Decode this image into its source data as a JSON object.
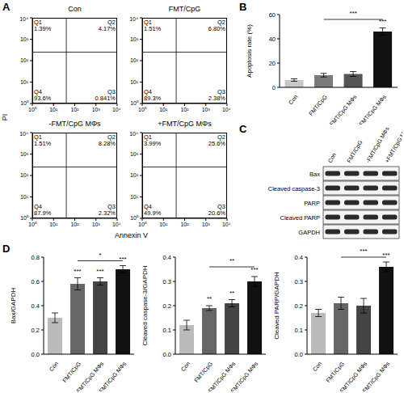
{
  "chart_data": [
    {
      "type": "scatter",
      "label": "A",
      "x_label": "Annexin V",
      "y_label": "PI",
      "log": true,
      "xlim": [
        1,
        10000
      ],
      "ylim": [
        1,
        10000
      ],
      "xticks": [
        {
          "value": 1,
          "label": "10⁰"
        },
        {
          "value": 10,
          "label": "10¹"
        },
        {
          "value": 100,
          "label": "10²"
        },
        {
          "value": 1000,
          "label": "10³"
        },
        {
          "value": 10000,
          "label": "10⁴"
        }
      ],
      "yticks": [
        {
          "value": 1,
          "label": "10⁰"
        },
        {
          "value": 10,
          "label": "10¹"
        },
        {
          "value": 100,
          "label": "10²"
        },
        {
          "value": 1000,
          "label": "10³"
        },
        {
          "value": 10000,
          "label": "10⁴"
        }
      ],
      "gates": {
        "x": 40,
        "y": 250
      },
      "panels": [
        {
          "title": "Con",
          "quadrants": [
            {
              "name": "Q1",
              "value": 1.39,
              "label": "1.39%"
            },
            {
              "name": "Q2",
              "value": 4.17,
              "label": "4.17%"
            },
            {
              "name": "Q3",
              "value": 0.841,
              "label": "0.841%"
            },
            {
              "name": "Q4",
              "value": 93.6,
              "label": "93.6%"
            }
          ]
        },
        {
          "title": "FMT/CpG",
          "quadrants": [
            {
              "name": "Q1",
              "value": 1.51,
              "label": "1.51%"
            },
            {
              "name": "Q2",
              "value": 6.8,
              "label": "6.80%"
            },
            {
              "name": "Q3",
              "value": 2.38,
              "label": "2.38%"
            },
            {
              "name": "Q4",
              "value": 89.3,
              "label": "89.3%"
            }
          ]
        },
        {
          "title": "-FMT/CpG MΦs",
          "quadrants": [
            {
              "name": "Q1",
              "value": 1.51,
              "label": "1.51%"
            },
            {
              "name": "Q2",
              "value": 8.28,
              "label": "8.28%"
            },
            {
              "name": "Q3",
              "value": 2.32,
              "label": "2.32%"
            },
            {
              "name": "Q4",
              "value": 87.9,
              "label": "87.9%"
            }
          ]
        },
        {
          "title": "+FMT/CpG MΦs",
          "quadrants": [
            {
              "name": "Q1",
              "value": 3.99,
              "label": "3.99%"
            },
            {
              "name": "Q2",
              "value": 25.6,
              "label": "25.6%"
            },
            {
              "name": "Q3",
              "value": 20.6,
              "label": "20.6%"
            },
            {
              "name": "Q4",
              "value": 49.9,
              "label": "49.9%"
            }
          ]
        }
      ]
    },
    {
      "type": "bar",
      "label": "B",
      "y_label": "Apoptosis rate (%)",
      "categories": [
        "Con",
        "FMT/CpG",
        "-FMT/CpG MΦs",
        "+FMT/CpG MΦs"
      ],
      "values": [
        6,
        10,
        11,
        46
      ],
      "errors": [
        1,
        1.5,
        2,
        3
      ],
      "colors": [
        "#c8c8c8",
        "#7a7a7a",
        "#555555",
        "#111111"
      ],
      "ylim": [
        0,
        60
      ],
      "yticks": [
        0,
        20,
        40,
        60
      ],
      "annotations": [
        {
          "category": "+FMT/CpG MΦs",
          "text": "***"
        }
      ],
      "brackets": [
        {
          "from": "FMT/CpG",
          "to": "+FMT/CpG MΦs",
          "y": 56,
          "text": "***"
        }
      ]
    },
    {
      "type": "western_blot",
      "label": "C",
      "categories": [
        "Con",
        "FMT/CpG",
        "-FMT/CpG MΦs",
        "+FMT/CpG MΦs"
      ],
      "rows": [
        "Bax",
        "Cleaved caspase-3",
        "PARP",
        "Cleaved PARP",
        "GAPDH"
      ]
    },
    {
      "type": "bar",
      "label": "D",
      "y_label": "Bax/GAPDH",
      "categories": [
        "Con",
        "FMT/CpG",
        "-FMT/CpG MΦs",
        "+FMT/CpG MΦs"
      ],
      "values": [
        0.3,
        0.58,
        0.6,
        0.7
      ],
      "errors": [
        0.04,
        0.05,
        0.03,
        0.03
      ],
      "colors": [
        "#bbbbbb",
        "#666666",
        "#444444",
        "#111111"
      ],
      "ylim": [
        0,
        0.8
      ],
      "yticks": [
        {
          "value": 0,
          "label": "0.0"
        },
        {
          "value": 0.2,
          "label": "0.2"
        },
        {
          "value": 0.4,
          "label": "0.4"
        },
        {
          "value": 0.6,
          "label": "0.6"
        },
        {
          "value": 0.8,
          "label": "0.8"
        }
      ],
      "annotations": [
        {
          "category": "FMT/CpG",
          "text": "***"
        },
        {
          "category": "-FMT/CpG MΦs",
          "text": "***"
        },
        {
          "category": "+FMT/CpG MΦs",
          "text": "***"
        }
      ],
      "brackets": [
        {
          "from": "FMT/CpG",
          "to": "+FMT/CpG MΦs",
          "y": 0.77,
          "text": "*"
        }
      ]
    },
    {
      "type": "bar",
      "y_label": "Cleaved caspase-3/GAPDH",
      "categories": [
        "Con",
        "FMT/CpG",
        "-FMT/CpG MΦs",
        "+FMT/CpG MΦs"
      ],
      "values": [
        0.12,
        0.19,
        0.21,
        0.3
      ],
      "errors": [
        0.02,
        0.01,
        0.015,
        0.02
      ],
      "colors": [
        "#bbbbbb",
        "#666666",
        "#444444",
        "#111111"
      ],
      "ylim": [
        0,
        0.4
      ],
      "yticks": [
        {
          "value": 0,
          "label": "0.0"
        },
        {
          "value": 0.1,
          "label": "0.1"
        },
        {
          "value": 0.2,
          "label": "0.2"
        },
        {
          "value": 0.3,
          "label": "0.3"
        },
        {
          "value": 0.4,
          "label": "0.4"
        }
      ],
      "annotations": [
        {
          "category": "FMT/CpG",
          "text": "**"
        },
        {
          "category": "-FMT/CpG MΦs",
          "text": "**"
        },
        {
          "category": "+FMT/CpG MΦs",
          "text": "***"
        }
      ],
      "brackets": [
        {
          "from": "FMT/CpG",
          "to": "+FMT/CpG MΦs",
          "y": 0.36,
          "text": "**"
        }
      ]
    },
    {
      "type": "bar",
      "y_label": "Cleaved PARP/GAPDH",
      "categories": [
        "Con",
        "FMT/CpG",
        "-FMT/CpG MΦs",
        "+FMT/CpG MΦs"
      ],
      "values": [
        0.17,
        0.21,
        0.2,
        0.36
      ],
      "errors": [
        0.015,
        0.025,
        0.03,
        0.02
      ],
      "colors": [
        "#bbbbbb",
        "#666666",
        "#444444",
        "#111111"
      ],
      "ylim": [
        0,
        0.4
      ],
      "yticks": [
        {
          "value": 0,
          "label": "0.0"
        },
        {
          "value": 0.1,
          "label": "0.1"
        },
        {
          "value": 0.2,
          "label": "0.2"
        },
        {
          "value": 0.3,
          "label": "0.3"
        },
        {
          "value": 0.4,
          "label": "0.4"
        }
      ],
      "annotations": [
        {
          "category": "+FMT/CpG MΦs",
          "text": "***"
        }
      ],
      "brackets": [
        {
          "from": "FMT/CpG",
          "to": "+FMT/CpG MΦs",
          "y": 0.4,
          "text": "***"
        }
      ]
    }
  ]
}
